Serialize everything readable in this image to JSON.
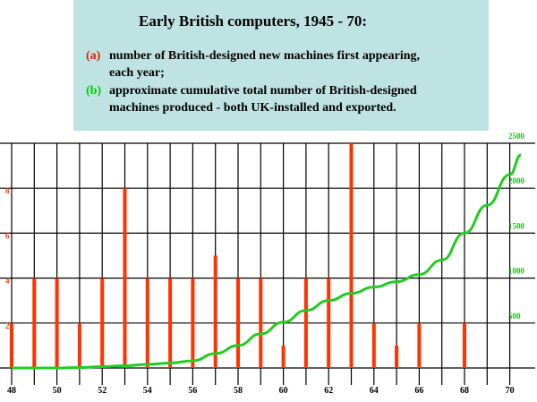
{
  "title_block": {
    "heading": "Early British computers, 1945 - 70:",
    "line_a_label": "(a)",
    "line_a_text": "number of British-designed new machines first appearing,",
    "line_a_text2": "each year;",
    "line_b_label": "(b)",
    "line_b_text": "approximate cumulative total number of British-designed",
    "line_b_text2": "machines produced -  both UK-installed and exported."
  },
  "colors": {
    "bar": "#ff3300",
    "line": "#22cc22",
    "grid": "#000000",
    "left_axis": "#ff3300",
    "right_axis": "#22bb22",
    "title_bg": "#bfe3e3"
  },
  "chart_data": {
    "type": "bar+line",
    "x_ticks": [
      "48",
      "50",
      "52",
      "54",
      "56",
      "58",
      "60",
      "62",
      "64",
      "66",
      "68",
      "70"
    ],
    "left_axis": {
      "ticks": [
        "2",
        "4",
        "6",
        "8"
      ],
      "ylim": [
        0,
        10
      ]
    },
    "right_axis": {
      "ticks": [
        "500",
        "1000",
        "1500",
        "2000",
        "2500"
      ],
      "ylim": [
        0,
        2500
      ]
    },
    "bars": {
      "series": "new machines first appearing each year",
      "points": [
        {
          "x": 48,
          "y": 2
        },
        {
          "x": 49,
          "y": 4
        },
        {
          "x": 50,
          "y": 4
        },
        {
          "x": 51,
          "y": 2
        },
        {
          "x": 52,
          "y": 4
        },
        {
          "x": 53,
          "y": 8
        },
        {
          "x": 54,
          "y": 4
        },
        {
          "x": 55,
          "y": 4
        },
        {
          "x": 56,
          "y": 4
        },
        {
          "x": 57,
          "y": 5
        },
        {
          "x": 58,
          "y": 4
        },
        {
          "x": 59,
          "y": 4
        },
        {
          "x": 60,
          "y": 1
        },
        {
          "x": 61,
          "y": 4
        },
        {
          "x": 62,
          "y": 4
        },
        {
          "x": 63,
          "y": 10
        },
        {
          "x": 64,
          "y": 2
        },
        {
          "x": 65,
          "y": 1
        },
        {
          "x": 66,
          "y": 2
        },
        {
          "x": 68,
          "y": 2
        }
      ]
    },
    "line": {
      "series": "approximate cumulative total number of machines produced",
      "points": [
        {
          "x": 48,
          "y": 0
        },
        {
          "x": 49,
          "y": 0
        },
        {
          "x": 50,
          "y": 0
        },
        {
          "x": 51,
          "y": 5
        },
        {
          "x": 52,
          "y": 15
        },
        {
          "x": 53,
          "y": 25
        },
        {
          "x": 54,
          "y": 40
        },
        {
          "x": 55,
          "y": 55
        },
        {
          "x": 56,
          "y": 80
        },
        {
          "x": 57,
          "y": 160
        },
        {
          "x": 58,
          "y": 250
        },
        {
          "x": 59,
          "y": 380
        },
        {
          "x": 60,
          "y": 510
        },
        {
          "x": 61,
          "y": 640
        },
        {
          "x": 62,
          "y": 750
        },
        {
          "x": 63,
          "y": 830
        },
        {
          "x": 64,
          "y": 900
        },
        {
          "x": 65,
          "y": 960
        },
        {
          "x": 66,
          "y": 1040
        },
        {
          "x": 67,
          "y": 1200
        },
        {
          "x": 68,
          "y": 1500
        },
        {
          "x": 69,
          "y": 1810
        },
        {
          "x": 70,
          "y": 2150
        },
        {
          "x": 70.5,
          "y": 2370
        }
      ]
    },
    "grid": true
  }
}
